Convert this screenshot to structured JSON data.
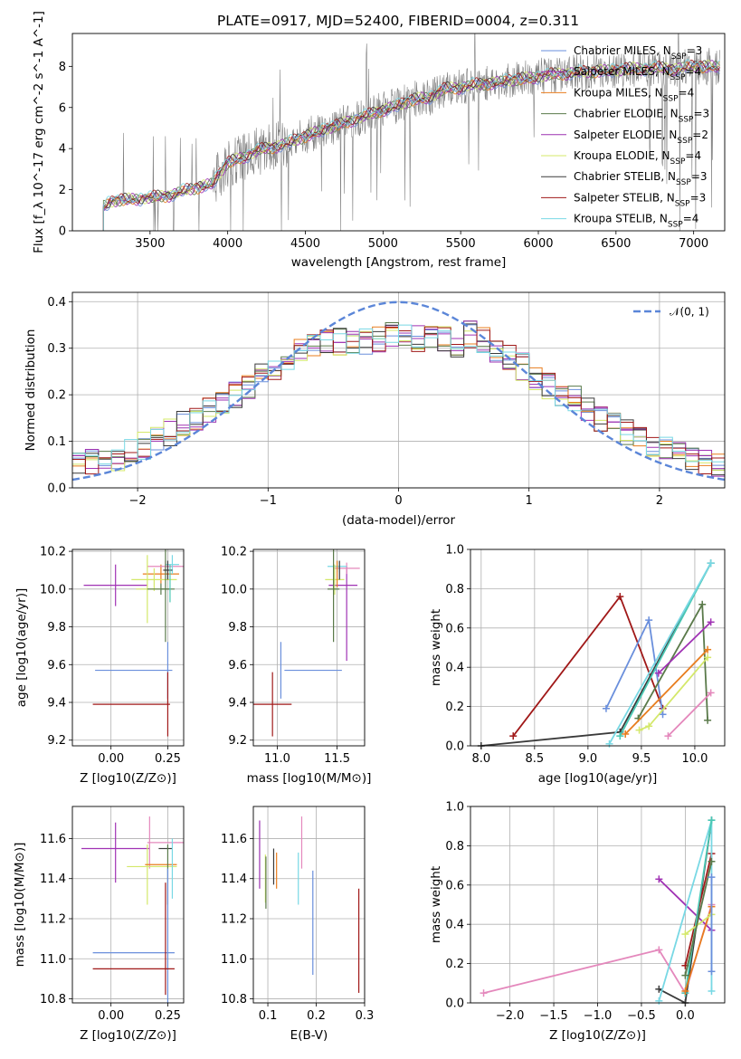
{
  "figure": {
    "title": "PLATE=0917, MJD=52400, FIBERID=0004, z=0.311"
  },
  "colors": {
    "chabrier_miles": "#6a8fdc",
    "salpeter_miles": "#a032b4",
    "kroupa_miles": "#e87d1e",
    "chabrier_elodie": "#5a7a4a",
    "salpeter_elodie": "#9b30b0",
    "kroupa_elodie": "#d4e86a",
    "chabrier_stelib": "#3a3a3a",
    "salpeter_stelib": "#a01818",
    "kroupa_stelib": "#78d8e4",
    "pink": "#e488bc",
    "teal": "#4ac8b4",
    "gray": "#808080",
    "gaussian": "#5b86d8"
  },
  "chart_data": [
    {
      "type": "line",
      "panel": "spectrum",
      "xlabel": "wavelength [Angstrom, rest frame]",
      "ylabel": "Flux [f_λ 10^-17 erg cm^-2 s^-1 A^-1]",
      "xlim": [
        3000,
        7200
      ],
      "ylim": [
        0,
        9.6
      ],
      "xticks": [
        3500,
        4000,
        4500,
        5000,
        5500,
        6000,
        6500,
        7000
      ],
      "yticks": [
        0,
        2,
        4,
        6,
        8
      ],
      "legend_position": "upper-right",
      "legend": [
        {
          "text": "Chabrier MILES, N_SSP=3",
          "color": "#6a8fdc"
        },
        {
          "text": "Salpeter MILES, N_SSP=4",
          "color": "#a032b4"
        },
        {
          "text": "Kroupa MILES, N_SSP=4",
          "color": "#e87d1e"
        },
        {
          "text": "Chabrier ELODIE, N_SSP=3",
          "color": "#5a7a4a"
        },
        {
          "text": "Salpeter ELODIE, N_SSP=2",
          "color": "#9b30b0"
        },
        {
          "text": "Kroupa ELODIE, N_SSP=4",
          "color": "#d4e86a"
        },
        {
          "text": "Chabrier STELIB, N_SSP=3",
          "color": "#3a3a3a"
        },
        {
          "text": "Salpeter STELIB, N_SSP=3",
          "color": "#a01818"
        },
        {
          "text": "Kroupa STELIB, N_SSP=4",
          "color": "#78d8e4"
        }
      ],
      "model_curve": {
        "x": [
          3200,
          3250,
          3300,
          3400,
          3500,
          3600,
          3700,
          3800,
          3900,
          4000,
          4100,
          4200,
          4300,
          4400,
          4500,
          4600,
          4700,
          4800,
          4900,
          5000,
          5100,
          5200,
          5300,
          5400,
          5500,
          5600,
          5700,
          5800,
          5900,
          6000,
          6100,
          6200,
          6300,
          6400,
          6500,
          6600,
          6700,
          6800,
          6900,
          7000,
          7100
        ],
        "y": [
          1.2,
          1.4,
          1.5,
          1.55,
          1.6,
          1.7,
          1.9,
          2.1,
          2.3,
          3.3,
          3.6,
          3.9,
          4.1,
          4.3,
          4.6,
          4.9,
          5.1,
          5.4,
          5.6,
          5.9,
          6.1,
          6.4,
          6.5,
          6.9,
          7.0,
          7.1,
          7.2,
          7.3,
          7.4,
          7.5,
          7.6,
          7.7,
          7.7,
          7.8,
          7.8,
          7.9,
          7.9,
          7.9,
          7.9,
          8.0,
          8.0
        ]
      },
      "data_start": 3200,
      "data_end": 7170
    },
    {
      "type": "step",
      "panel": "residuals",
      "xlabel": "(data-model)/error",
      "ylabel": "Normed distribution",
      "xlim": [
        -2.5,
        2.5
      ],
      "ylim": [
        0,
        0.42
      ],
      "xticks": [
        -2,
        -1,
        0,
        1,
        2
      ],
      "yticks": [
        0.0,
        0.1,
        0.2,
        0.3,
        0.4
      ],
      "legend_position": "upper-right",
      "legend_label": "𝒩(0, 1)",
      "bins": 50,
      "base_hist": [
        0.055,
        0.055,
        0.06,
        0.065,
        0.075,
        0.09,
        0.1,
        0.12,
        0.14,
        0.15,
        0.165,
        0.18,
        0.2,
        0.22,
        0.24,
        0.26,
        0.28,
        0.29,
        0.31,
        0.32,
        0.315,
        0.31,
        0.315,
        0.32,
        0.33,
        0.325,
        0.32,
        0.33,
        0.32,
        0.31,
        0.33,
        0.32,
        0.3,
        0.28,
        0.26,
        0.24,
        0.22,
        0.2,
        0.19,
        0.17,
        0.15,
        0.135,
        0.12,
        0.1,
        0.09,
        0.08,
        0.07,
        0.065,
        0.055,
        0.05
      ]
    },
    {
      "type": "errorbar",
      "panel": "age_vs_Z",
      "xlabel": "Z [log10(Z/Z⊙)]",
      "ylabel": "age [log10(age/yr)]",
      "xlim": [
        -0.17,
        0.32
      ],
      "ylim": [
        9.17,
        10.21
      ],
      "xticks": [
        0.0,
        0.25
      ],
      "xtick_labels": [
        "0.00",
        "0.25"
      ],
      "yticks": [
        9.2,
        9.4,
        9.6,
        9.8,
        10.0,
        10.2
      ],
      "points": [
        {
          "x": 0.02,
          "y": 10.02,
          "xerr": 0.14,
          "yerr": 0.11,
          "color": "#a032b4"
        },
        {
          "x": 0.22,
          "y": 10.08,
          "xerr": 0.08,
          "yerr": 0.05,
          "color": "#e87d1e"
        },
        {
          "x": 0.24,
          "y": 10.12,
          "xerr": 0.08,
          "yerr": 0.03,
          "color": "#e488bc"
        },
        {
          "x": 0.27,
          "y": 10.13,
          "xerr": 0.03,
          "yerr": 0.05,
          "color": "#78d8e4"
        },
        {
          "x": 0.19,
          "y": 10.05,
          "xerr": 0.1,
          "yerr": 0.06,
          "color": "#d4e86a"
        },
        {
          "x": 0.16,
          "y": 10.0,
          "xerr": 0.05,
          "yerr": 0.18,
          "color": "#d4e86a"
        },
        {
          "x": 0.22,
          "y": 10.0,
          "xerr": 0.06,
          "yerr": 0.03,
          "color": "#5a7a4a"
        },
        {
          "x": 0.24,
          "y": 10.0,
          "xerr": 0.02,
          "yerr": 0.28,
          "color": "#5a7a4a"
        },
        {
          "x": 0.25,
          "y": 10.1,
          "xerr": 0.02,
          "yerr": 0.05,
          "color": "#3a3a3a"
        },
        {
          "x": 0.1,
          "y": 9.57,
          "xerr": 0.17,
          "yerr": 0.0,
          "color": "#6a8fdc"
        },
        {
          "x": 0.25,
          "y": 9.57,
          "xerr": 0.0,
          "yerr": 0.15,
          "color": "#6a8fdc"
        },
        {
          "x": 0.09,
          "y": 9.39,
          "xerr": 0.17,
          "yerr": 0.0,
          "color": "#a01818"
        },
        {
          "x": 0.25,
          "y": 9.39,
          "xerr": 0.0,
          "yerr": 0.17,
          "color": "#a01818"
        },
        {
          "x": 0.26,
          "y": 10.03,
          "xerr": 0.0,
          "yerr": 0.1,
          "color": "#4ac8b4"
        }
      ]
    },
    {
      "type": "errorbar",
      "panel": "age_vs_mass",
      "xlabel": "mass [log10(M/M⊙)]",
      "ylabel": "",
      "xlim": [
        10.8,
        11.73
      ],
      "ylim": [
        9.17,
        10.21
      ],
      "xticks": [
        11.0,
        11.5
      ],
      "xtick_labels": [
        "11.0",
        "11.5"
      ],
      "yticks": [
        9.2,
        9.4,
        9.6,
        9.8,
        10.0,
        10.2
      ],
      "points": [
        {
          "x": 10.96,
          "y": 9.39,
          "xerr": 0.16,
          "yerr": 0.17,
          "color": "#a01818"
        },
        {
          "x": 11.03,
          "y": 9.57,
          "xerr": 0.0,
          "yerr": 0.15,
          "color": "#6a8fdc"
        },
        {
          "x": 11.3,
          "y": 9.57,
          "xerr": 0.24,
          "yerr": 0.0,
          "color": "#6a8fdc"
        },
        {
          "x": 11.55,
          "y": 10.02,
          "xerr": 0.12,
          "yerr": 0.0,
          "color": "#a032b4"
        },
        {
          "x": 11.58,
          "y": 9.87,
          "xerr": 0.0,
          "yerr": 0.25,
          "color": "#a032b4"
        },
        {
          "x": 11.58,
          "y": 10.11,
          "xerr": 0.11,
          "yerr": 0.03,
          "color": "#e488bc"
        },
        {
          "x": 11.5,
          "y": 10.12,
          "xerr": 0.08,
          "yerr": 0.03,
          "color": "#78d8e4"
        },
        {
          "x": 11.48,
          "y": 10.05,
          "xerr": 0.08,
          "yerr": 0.08,
          "color": "#d4e86a"
        },
        {
          "x": 11.5,
          "y": 10.08,
          "xerr": 0.0,
          "yerr": 0.07,
          "color": "#e87d1e"
        },
        {
          "x": 11.47,
          "y": 10.0,
          "xerr": 0.05,
          "yerr": 0.28,
          "color": "#5a7a4a"
        },
        {
          "x": 11.52,
          "y": 10.1,
          "xerr": 0.0,
          "yerr": 0.05,
          "color": "#3a3a3a"
        }
      ]
    },
    {
      "type": "line",
      "panel": "mass_weight_vs_age",
      "xlabel": "age [log10(age/yr)]",
      "ylabel": "mass weight",
      "xlim": [
        7.9,
        10.28
      ],
      "ylim": [
        0,
        1.0
      ],
      "xticks": [
        8.0,
        8.5,
        9.0,
        9.5,
        10.0
      ],
      "yticks": [
        0.0,
        0.2,
        0.4,
        0.6,
        0.8,
        1.0
      ],
      "series": [
        {
          "color": "#a01818",
          "x": [
            8.3,
            9.3,
            9.7
          ],
          "y": [
            0.05,
            0.76,
            0.19
          ]
        },
        {
          "color": "#6a8fdc",
          "x": [
            9.17,
            9.57,
            9.7
          ],
          "y": [
            0.19,
            0.64,
            0.16
          ]
        },
        {
          "color": "#3a3a3a",
          "x": [
            8.0,
            9.3,
            10.15
          ],
          "y": [
            0.0,
            0.07,
            0.93
          ]
        },
        {
          "color": "#4ac8b4",
          "x": [
            9.3,
            10.15
          ],
          "y": [
            0.05,
            0.93
          ]
        },
        {
          "color": "#78d8e4",
          "x": [
            9.2,
            10.15
          ],
          "y": [
            0.01,
            0.93
          ]
        },
        {
          "color": "#5a7a4a",
          "x": [
            9.47,
            10.07,
            10.12
          ],
          "y": [
            0.14,
            0.72,
            0.13
          ]
        },
        {
          "color": "#e87d1e",
          "x": [
            9.35,
            10.12
          ],
          "y": [
            0.06,
            0.49
          ]
        },
        {
          "color": "#a032b4",
          "x": [
            9.66,
            10.15
          ],
          "y": [
            0.37,
            0.63
          ]
        },
        {
          "color": "#d4e86a",
          "x": [
            9.48,
            9.57,
            10.12
          ],
          "y": [
            0.08,
            0.1,
            0.45
          ]
        },
        {
          "color": "#e488bc",
          "x": [
            9.75,
            10.15
          ],
          "y": [
            0.05,
            0.27
          ]
        }
      ]
    },
    {
      "type": "errorbar",
      "panel": "mass_vs_Z",
      "xlabel": "Z [log10(Z/Z⊙)]",
      "ylabel": "mass [log10(M/M⊙)]",
      "xlim": [
        -0.17,
        0.32
      ],
      "ylim": [
        10.78,
        11.76
      ],
      "xticks": [
        0.0,
        0.25
      ],
      "xtick_labels": [
        "0.00",
        "0.25"
      ],
      "yticks": [
        10.8,
        11.0,
        11.2,
        11.4,
        11.6
      ],
      "points": [
        {
          "x": 0.02,
          "y": 11.55,
          "xerr": 0.15,
          "yerr": 0.0,
          "color": "#a032b4"
        },
        {
          "x": 0.02,
          "y": 11.53,
          "xerr": 0.0,
          "yerr": 0.15,
          "color": "#a032b4"
        },
        {
          "x": 0.24,
          "y": 11.58,
          "xerr": 0.08,
          "yerr": 0.0,
          "color": "#e488bc"
        },
        {
          "x": 0.17,
          "y": 11.58,
          "xerr": 0.0,
          "yerr": 0.13,
          "color": "#e488bc"
        },
        {
          "x": 0.18,
          "y": 11.46,
          "xerr": 0.11,
          "yerr": 0.0,
          "color": "#d4e86a"
        },
        {
          "x": 0.16,
          "y": 11.42,
          "xerr": 0.0,
          "yerr": 0.15,
          "color": "#d4e86a"
        },
        {
          "x": 0.22,
          "y": 11.47,
          "xerr": 0.07,
          "yerr": 0.0,
          "color": "#e87d1e"
        },
        {
          "x": 0.24,
          "y": 11.55,
          "xerr": 0.03,
          "yerr": 0.0,
          "color": "#3a3a3a"
        },
        {
          "x": 0.25,
          "y": 11.42,
          "xerr": 0.0,
          "yerr": 0.15,
          "color": "#5a7a4a"
        },
        {
          "x": 0.27,
          "y": 11.45,
          "xerr": 0.0,
          "yerr": 0.15,
          "color": "#78d8e4"
        },
        {
          "x": 0.1,
          "y": 11.03,
          "xerr": 0.18,
          "yerr": 0.0,
          "color": "#6a8fdc"
        },
        {
          "x": 0.25,
          "y": 11.1,
          "xerr": 0.0,
          "yerr": 0.35,
          "color": "#6a8fdc"
        },
        {
          "x": 0.1,
          "y": 10.95,
          "xerr": 0.18,
          "yerr": 0.0,
          "color": "#a01818"
        },
        {
          "x": 0.24,
          "y": 11.1,
          "xerr": 0.0,
          "yerr": 0.28,
          "color": "#a01818"
        }
      ]
    },
    {
      "type": "errorbar",
      "panel": "mass_vs_EBV",
      "xlabel": "E(B-V)",
      "ylabel": "",
      "xlim": [
        0.07,
        0.3
      ],
      "ylim": [
        10.78,
        11.76
      ],
      "xticks": [
        0.1,
        0.2,
        0.3
      ],
      "xtick_labels": [
        "0.1",
        "0.2",
        "0.3"
      ],
      "yticks": [
        10.8,
        11.0,
        11.2,
        11.4,
        11.6
      ],
      "points": [
        {
          "x": 0.083,
          "y": 11.52,
          "xerr": 0.0,
          "yerr": 0.17,
          "color": "#9b30b0"
        },
        {
          "x": 0.095,
          "y": 11.4,
          "xerr": 0.0,
          "yerr": 0.12,
          "color": "#d4e86a"
        },
        {
          "x": 0.096,
          "y": 11.38,
          "xerr": 0.0,
          "yerr": 0.13,
          "color": "#5a7a4a"
        },
        {
          "x": 0.112,
          "y": 11.46,
          "xerr": 0.0,
          "yerr": 0.09,
          "color": "#3a3a3a"
        },
        {
          "x": 0.118,
          "y": 11.44,
          "xerr": 0.0,
          "yerr": 0.09,
          "color": "#e87d1e"
        },
        {
          "x": 0.163,
          "y": 11.4,
          "xerr": 0.0,
          "yerr": 0.13,
          "color": "#78d8e4"
        },
        {
          "x": 0.17,
          "y": 11.58,
          "xerr": 0.0,
          "yerr": 0.13,
          "color": "#e488bc"
        },
        {
          "x": 0.193,
          "y": 11.18,
          "xerr": 0.0,
          "yerr": 0.26,
          "color": "#6a8fdc"
        },
        {
          "x": 0.288,
          "y": 11.09,
          "xerr": 0.0,
          "yerr": 0.26,
          "color": "#a01818"
        }
      ]
    },
    {
      "type": "line",
      "panel": "mass_weight_vs_Z",
      "xlabel": "Z [log10(Z/Z⊙)]",
      "ylabel": "mass weight",
      "xlim": [
        -2.45,
        0.45
      ],
      "ylim": [
        0,
        1.0
      ],
      "xticks": [
        -2.0,
        -1.5,
        -1.0,
        -0.5,
        0.0
      ],
      "yticks": [
        0.0,
        0.2,
        0.4,
        0.6,
        0.8,
        1.0
      ],
      "series": [
        {
          "color": "#e488bc",
          "x": [
            -2.3,
            -0.3,
            0.0,
            0.3
          ],
          "y": [
            0.05,
            0.27,
            0.05,
            0.5
          ]
        },
        {
          "color": "#a032b4",
          "x": [
            -0.3,
            0.3
          ],
          "y": [
            0.63,
            0.37
          ]
        },
        {
          "color": "#3a3a3a",
          "x": [
            -0.3,
            0.0,
            0.3
          ],
          "y": [
            0.07,
            0.0,
            0.93
          ]
        },
        {
          "color": "#a01818",
          "x": [
            0.0,
            0.3
          ],
          "y": [
            0.19,
            0.76
          ]
        },
        {
          "color": "#78d8e4",
          "x": [
            -0.3,
            0.3,
            0.3
          ],
          "y": [
            0.01,
            0.93,
            0.06
          ]
        },
        {
          "color": "#4ac8b4",
          "x": [
            0.0,
            0.3
          ],
          "y": [
            0.05,
            0.93
          ]
        },
        {
          "color": "#e87d1e",
          "x": [
            0.0,
            0.3
          ],
          "y": [
            0.06,
            0.49
          ]
        },
        {
          "color": "#d4e86a",
          "x": [
            0.0,
            0.3
          ],
          "y": [
            0.35,
            0.45
          ]
        },
        {
          "color": "#5a7a4a",
          "x": [
            0.0,
            0.3
          ],
          "y": [
            0.14,
            0.72
          ]
        },
        {
          "color": "#6a8fdc",
          "x": [
            0.3,
            0.3
          ],
          "y": [
            0.16,
            0.64
          ]
        }
      ]
    }
  ]
}
